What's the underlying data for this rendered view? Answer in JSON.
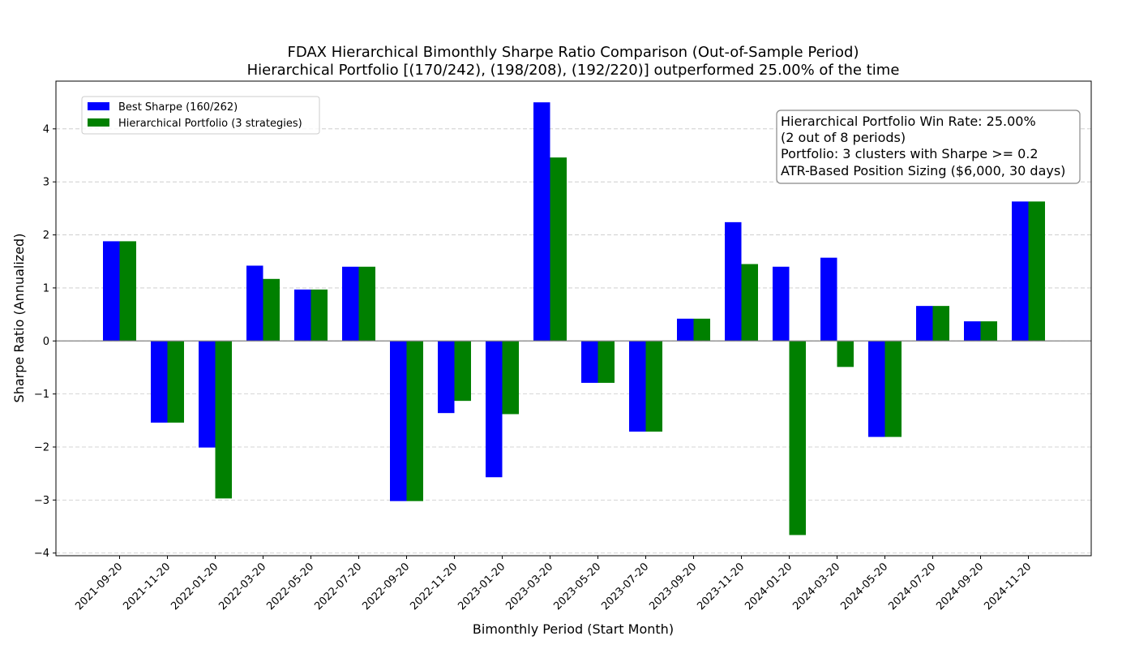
{
  "chart_data": {
    "type": "bar",
    "title": "FDAX Hierarchical Bimonthly Sharpe Ratio Comparison (Out-of-Sample Period)",
    "subtitle": "Hierarchical Portfolio [(170/242), (198/208), (192/220)] outperformed 25.00% of the time",
    "xlabel": "Bimonthly Period (Start Month)",
    "ylabel": "Sharpe Ratio (Annualized)",
    "ylim": [
      -4.05,
      4.9
    ],
    "yticks": [
      {
        "value": 4,
        "label": "4"
      },
      {
        "value": 3,
        "label": "3"
      },
      {
        "value": 2,
        "label": "2"
      },
      {
        "value": 1,
        "label": "1"
      },
      {
        "value": 0,
        "label": "0"
      },
      {
        "value": -1,
        "label": "−1"
      },
      {
        "value": -2,
        "label": "−2"
      },
      {
        "value": -3,
        "label": "−3"
      },
      {
        "value": -4,
        "label": "−4"
      }
    ],
    "grid": true,
    "legend_position": "upper-left",
    "categories": [
      "2021-09-20",
      "2021-11-20",
      "2022-01-20",
      "2022-03-20",
      "2022-05-20",
      "2022-07-20",
      "2022-09-20",
      "2022-11-20",
      "2023-01-20",
      "2023-03-20",
      "2023-05-20",
      "2023-07-20",
      "2023-09-20",
      "2023-11-20",
      "2024-01-20",
      "2024-03-20",
      "2024-05-20",
      "2024-07-20",
      "2024-09-20",
      "2024-11-20"
    ],
    "series": [
      {
        "name": "Best Sharpe (160/262)",
        "color": "#0000ff",
        "values": [
          1.88,
          -1.54,
          -2.01,
          1.42,
          0.97,
          1.4,
          -3.02,
          -1.36,
          -2.57,
          4.5,
          -0.79,
          -1.71,
          0.42,
          2.24,
          1.4,
          1.57,
          -1.81,
          0.66,
          0.37,
          2.63
        ]
      },
      {
        "name": "Hierarchical Portfolio (3 strategies)",
        "color": "#008000",
        "values": [
          1.88,
          -1.54,
          -2.97,
          1.17,
          0.97,
          1.4,
          -3.02,
          -1.13,
          -1.38,
          3.46,
          -0.79,
          -1.71,
          0.42,
          1.45,
          -3.66,
          -0.49,
          -1.81,
          0.66,
          0.37,
          2.63
        ]
      }
    ],
    "annotation": [
      "Hierarchical Portfolio Win Rate: 25.00%",
      "(2 out of 8 periods)",
      "Portfolio: 3 clusters with Sharpe >= 0.2",
      "ATR-Based Position Sizing ($6,000, 30 days)"
    ]
  }
}
